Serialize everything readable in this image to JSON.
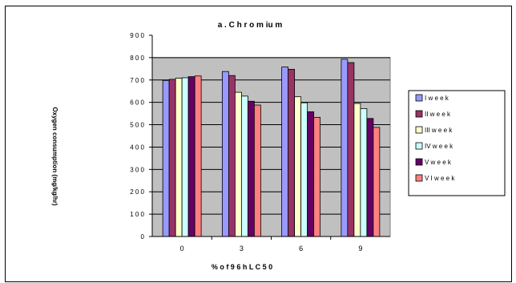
{
  "chart_data": {
    "type": "bar",
    "title": "a . C h r o m  iu m",
    "xlabel": "%   o f  9 6 h   L C  5 0",
    "ylabel": "Oxygen consumption (mg/kg/hr)",
    "categories": [
      "0",
      "3",
      "6",
      "9"
    ],
    "ylim": [
      0,
      900
    ],
    "yticks": [
      0,
      100,
      200,
      300,
      400,
      500,
      600,
      700,
      800,
      900
    ],
    "ytick_labels": [
      "0",
      "1 0 0",
      "2 0 0",
      "3 0 0",
      "4 0 0",
      "5 0 0",
      "6 0 0",
      "7 0 0",
      "8 0 0",
      "9 0 0"
    ],
    "grid": true,
    "legend_position": "right",
    "series": [
      {
        "name": "I  w e e k",
        "color": "#9999ff",
        "values": [
          698,
          738,
          758,
          793
        ]
      },
      {
        "name": "II  w e e k",
        "color": "#993366",
        "values": [
          703,
          720,
          748,
          778
        ]
      },
      {
        "name": "III  w e e k",
        "color": "#ffffcc",
        "values": [
          708,
          645,
          625,
          595
        ]
      },
      {
        "name": "IV  w e e k",
        "color": "#ccffff",
        "values": [
          710,
          628,
          598,
          572
        ]
      },
      {
        "name": "V  w e e k",
        "color": "#660066",
        "values": [
          715,
          605,
          558,
          528
        ]
      },
      {
        "name": "V I  w e e k",
        "color": "#ff8080",
        "values": [
          718,
          588,
          533,
          488
        ]
      }
    ]
  }
}
